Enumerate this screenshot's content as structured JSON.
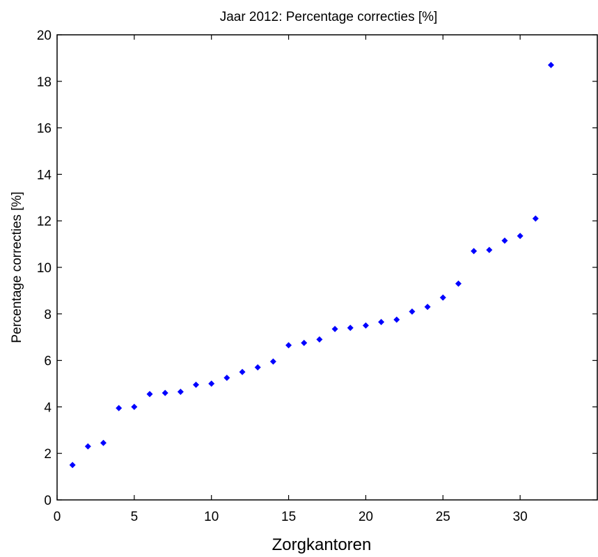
{
  "chart_data": {
    "type": "scatter",
    "title": "Jaar 2012: Percentage correcties [%]",
    "xlabel": "Zorgkantoren",
    "ylabel": "Percentage correcties [%]",
    "xlim": [
      0,
      35
    ],
    "ylim": [
      0,
      20
    ],
    "xticks": [
      0,
      5,
      10,
      15,
      20,
      25,
      30
    ],
    "yticks": [
      0,
      2,
      4,
      6,
      8,
      10,
      12,
      14,
      16,
      18,
      20
    ],
    "grid": false,
    "marker_color": "#0000FF",
    "series": [
      {
        "x": [
          1,
          2,
          3,
          4,
          5,
          6,
          7,
          8,
          9,
          10,
          11,
          12,
          13,
          14,
          15,
          16,
          17,
          18,
          19,
          20,
          21,
          22,
          23,
          24,
          25,
          26,
          27,
          28,
          29,
          30,
          31,
          32
        ],
        "y": [
          1.5,
          2.3,
          2.45,
          3.95,
          4.0,
          4.55,
          4.6,
          4.65,
          4.95,
          5.0,
          5.25,
          5.5,
          5.7,
          5.95,
          6.65,
          6.75,
          6.9,
          7.35,
          7.4,
          7.5,
          7.65,
          7.75,
          8.1,
          8.3,
          8.7,
          9.3,
          10.7,
          10.75,
          11.15,
          11.35,
          12.1,
          18.7
        ]
      }
    ]
  }
}
